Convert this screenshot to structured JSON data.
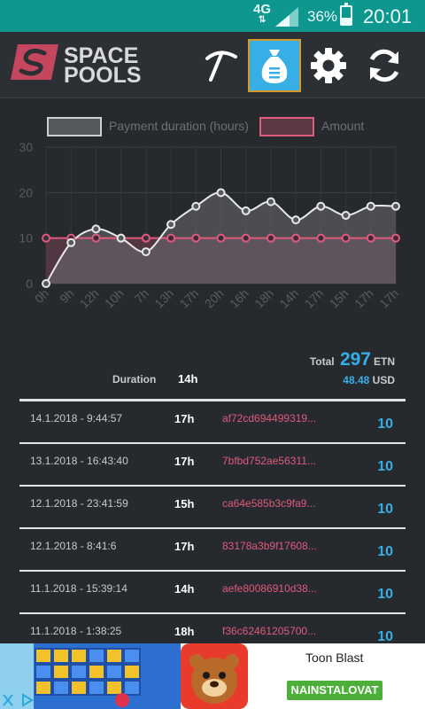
{
  "status_bar": {
    "network": "4G",
    "battery_percent": "36%",
    "battery_level": 0.36,
    "time": "20:01"
  },
  "header": {
    "logo_line1": "SPACE",
    "logo_line2": "POOLS",
    "actions": [
      {
        "icon": "pickaxe-icon",
        "active": false
      },
      {
        "icon": "money-bag-icon",
        "active": true
      },
      {
        "icon": "gear-icon",
        "active": false
      },
      {
        "icon": "refresh-icon",
        "active": false
      }
    ]
  },
  "chart_data": {
    "type": "line",
    "legend": [
      "Payment duration (hours)",
      "Amount"
    ],
    "categories": [
      "0h",
      "9h",
      "12h",
      "10h",
      "7h",
      "13h",
      "17h",
      "20h",
      "16h",
      "18h",
      "14h",
      "17h",
      "15h",
      "17h",
      "17h"
    ],
    "series": [
      {
        "name": "Payment duration (hours)",
        "values": [
          0,
          9,
          12,
          10,
          7,
          13,
          17,
          20,
          16,
          18,
          14,
          17,
          15,
          17,
          17
        ],
        "color": "#e8e8e8"
      },
      {
        "name": "Amount",
        "values": [
          10,
          10,
          10,
          10,
          10,
          10,
          10,
          10,
          10,
          10,
          10,
          10,
          10,
          10,
          10
        ],
        "color": "#e05a7e"
      }
    ],
    "yticks": [
      0,
      10,
      20,
      30
    ],
    "ylim": [
      0,
      30
    ],
    "grid": true
  },
  "summary": {
    "duration_label": "Duration",
    "duration_value": "14h",
    "total_label": "Total",
    "total_value": "297",
    "total_unit": "ETN",
    "usd_value": "48.48",
    "usd_unit": "USD"
  },
  "payments": [
    {
      "date": "14.1.2018 - 9:44:57",
      "duration": "17h",
      "tx": "af72cd694499319...",
      "amount": "10"
    },
    {
      "date": "13.1.2018 - 16:43:40",
      "duration": "17h",
      "tx": "7bfbd752ae56311...",
      "amount": "10"
    },
    {
      "date": "12.1.2018 - 23:41:59",
      "duration": "15h",
      "tx": "ca64e585b3c9fa9...",
      "amount": "10"
    },
    {
      "date": "12.1.2018 - 8:41:6",
      "duration": "17h",
      "tx": "83178a3b9f17608...",
      "amount": "10"
    },
    {
      "date": "11.1.2018 - 15:39:14",
      "duration": "14h",
      "tx": "aefe80086910d38...",
      "amount": "10"
    },
    {
      "date": "11.1.2018 - 1:38:25",
      "duration": "18h",
      "tx": "f36c62461205700...",
      "amount": "10"
    }
  ],
  "ad": {
    "title": "Toon Blast",
    "install_label": "NAINSTALOVAT"
  }
}
